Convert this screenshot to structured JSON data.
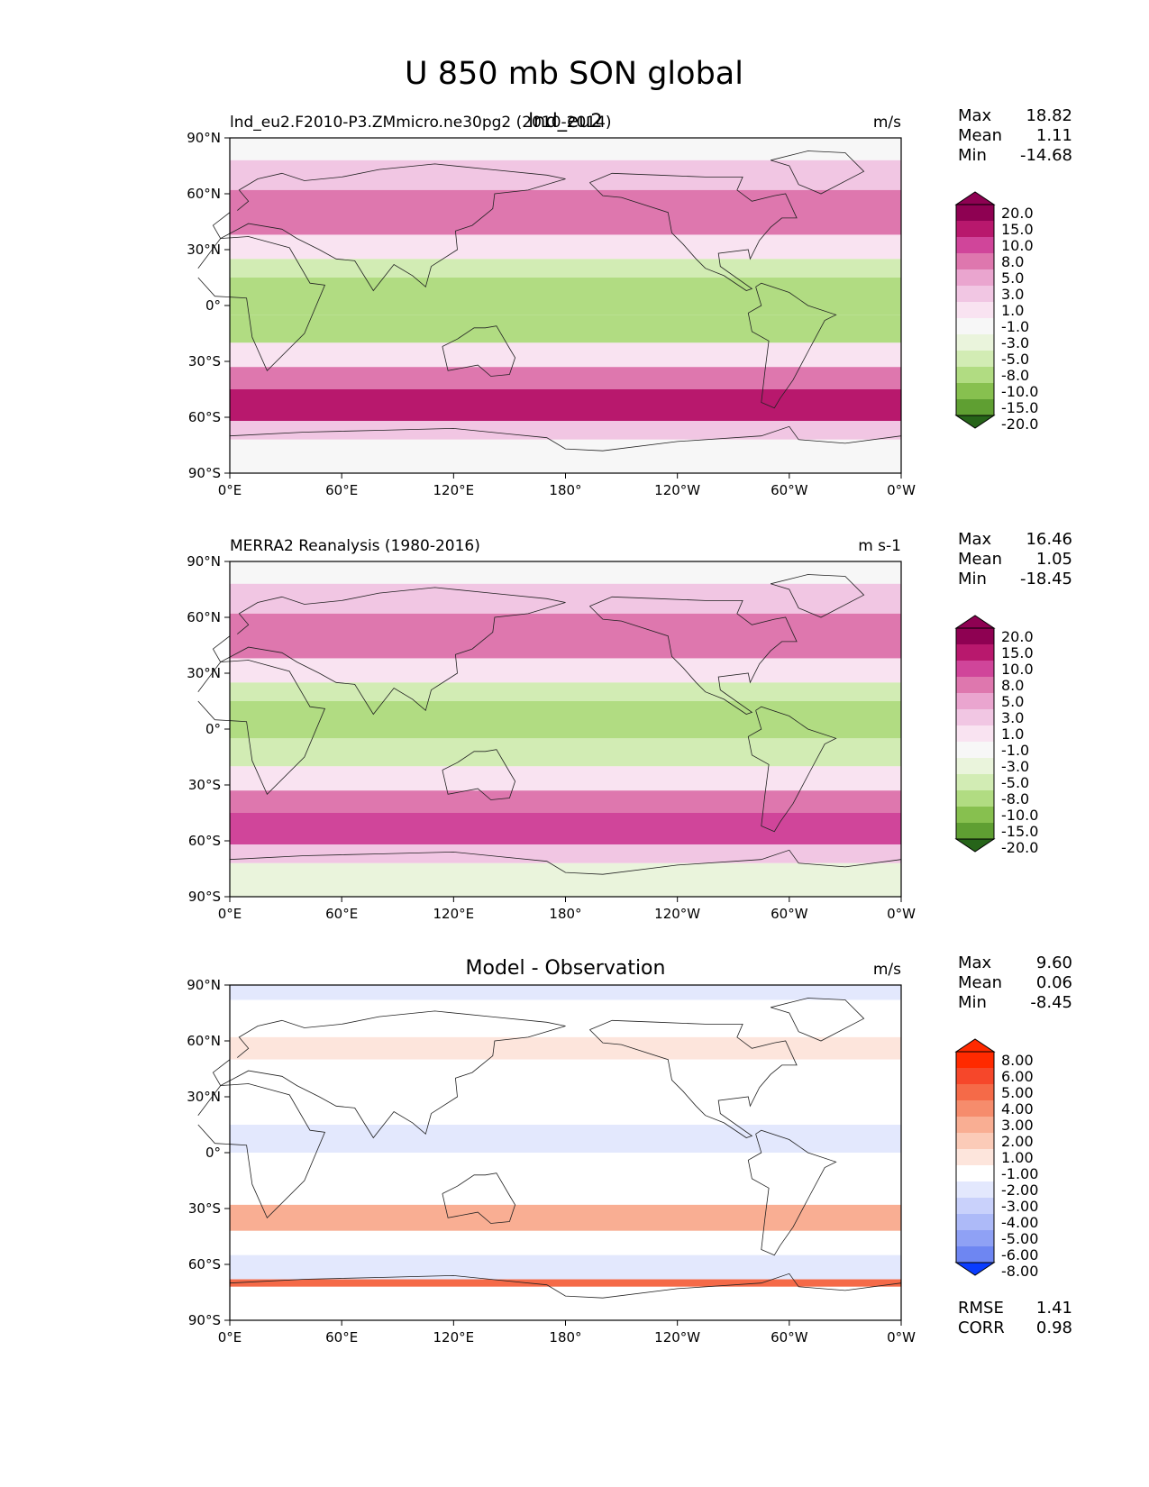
{
  "figure_title": "U 850 mb SON global",
  "chart_data": [
    {
      "type": "heatmap",
      "panel": "test",
      "overlay_label": "lnd_eu2",
      "title_left": "lnd_eu2.F2010-P3.ZMmicro.ne30pg2 (2010-2014)",
      "title_center": "",
      "units": "m/s",
      "stats": [
        {
          "label": "Max",
          "value": "18.82"
        },
        {
          "label": "Mean",
          "value": "1.11"
        },
        {
          "label": "Min",
          "value": "-14.68"
        }
      ],
      "colorbar": {
        "levels": [
          "20.0",
          "15.0",
          "10.0",
          "8.0",
          "5.0",
          "3.0",
          "1.0",
          "-1.0",
          "-3.0",
          "-5.0",
          "-8.0",
          "-10.0",
          "-15.0",
          "-20.0"
        ],
        "colors": [
          "#8e0152",
          "#b8186d",
          "#d0459a",
          "#de77ae",
          "#eaa5cf",
          "#f1c6e3",
          "#f9e3f1",
          "#f7f7f7",
          "#eaf4dc",
          "#d2ecb4",
          "#b1dc82",
          "#87c04f",
          "#5f9f32",
          "#3e7e1f",
          "#266419"
        ]
      },
      "xticks": [
        "0°E",
        "60°E",
        "120°E",
        "180°",
        "120°W",
        "60°W",
        "0°W"
      ],
      "yticks": [
        "90°N",
        "60°N",
        "30°N",
        "0°",
        "30°S",
        "60°S",
        "90°S"
      ],
      "field_bands": [
        {
          "lat": [
            90,
            78
          ],
          "value": 0.5
        },
        {
          "lat": [
            78,
            62
          ],
          "value": 3.5
        },
        {
          "lat": [
            62,
            38
          ],
          "value": 9
        },
        {
          "lat": [
            38,
            25
          ],
          "value": 2
        },
        {
          "lat": [
            25,
            15
          ],
          "value": -5
        },
        {
          "lat": [
            15,
            -5
          ],
          "value": -8
        },
        {
          "lat": [
            -5,
            -20
          ],
          "value": -6
        },
        {
          "lat": [
            -20,
            -33
          ],
          "value": 1
        },
        {
          "lat": [
            -33,
            -45
          ],
          "value": 9
        },
        {
          "lat": [
            -45,
            -62
          ],
          "value": 15
        },
        {
          "lat": [
            -62,
            -72
          ],
          "value": 3
        },
        {
          "lat": [
            -72,
            -90
          ],
          "value": 0.5
        }
      ]
    },
    {
      "type": "heatmap",
      "panel": "reference",
      "title_left": "MERRA2 Reanalysis (1980-2016)",
      "title_center": "",
      "units": "m s-1",
      "stats": [
        {
          "label": "Max",
          "value": "16.46"
        },
        {
          "label": "Mean",
          "value": "1.05"
        },
        {
          "label": "Min",
          "value": "-18.45"
        }
      ],
      "colorbar": {
        "levels": [
          "20.0",
          "15.0",
          "10.0",
          "8.0",
          "5.0",
          "3.0",
          "1.0",
          "-1.0",
          "-3.0",
          "-5.0",
          "-8.0",
          "-10.0",
          "-15.0",
          "-20.0"
        ],
        "colors": [
          "#8e0152",
          "#b8186d",
          "#d0459a",
          "#de77ae",
          "#eaa5cf",
          "#f1c6e3",
          "#f9e3f1",
          "#f7f7f7",
          "#eaf4dc",
          "#d2ecb4",
          "#b1dc82",
          "#87c04f",
          "#5f9f32",
          "#3e7e1f",
          "#266419"
        ]
      },
      "xticks": [
        "0°E",
        "60°E",
        "120°E",
        "180°",
        "120°W",
        "60°W",
        "0°W"
      ],
      "yticks": [
        "90°N",
        "60°N",
        "30°N",
        "0°",
        "30°S",
        "60°S",
        "90°S"
      ],
      "field_bands": [
        {
          "lat": [
            90,
            78
          ],
          "value": 0.5
        },
        {
          "lat": [
            78,
            62
          ],
          "value": 3.5
        },
        {
          "lat": [
            62,
            38
          ],
          "value": 8.5
        },
        {
          "lat": [
            38,
            25
          ],
          "value": 2
        },
        {
          "lat": [
            25,
            15
          ],
          "value": -4
        },
        {
          "lat": [
            15,
            -5
          ],
          "value": -7
        },
        {
          "lat": [
            -5,
            -20
          ],
          "value": -5
        },
        {
          "lat": [
            -20,
            -33
          ],
          "value": 2
        },
        {
          "lat": [
            -33,
            -45
          ],
          "value": 9
        },
        {
          "lat": [
            -45,
            -62
          ],
          "value": 14
        },
        {
          "lat": [
            -62,
            -72
          ],
          "value": 3
        },
        {
          "lat": [
            -72,
            -90
          ],
          "value": -2
        }
      ]
    },
    {
      "type": "heatmap",
      "panel": "difference",
      "title_left": "",
      "title_center": "Model - Observation",
      "units": "m/s",
      "stats": [
        {
          "label": "Max",
          "value": "9.60"
        },
        {
          "label": "Mean",
          "value": "0.06"
        },
        {
          "label": "Min",
          "value": "-8.45"
        }
      ],
      "extra_stats": [
        {
          "label": "RMSE",
          "value": "1.41"
        },
        {
          "label": "CORR",
          "value": "0.98"
        }
      ],
      "colorbar": {
        "levels": [
          "8.00",
          "6.00",
          "5.00",
          "4.00",
          "3.00",
          "2.00",
          "1.00",
          "-1.00",
          "-2.00",
          "-3.00",
          "-4.00",
          "-5.00",
          "-6.00",
          "-8.00"
        ],
        "colors": [
          "#ff2a00",
          "#f6472a",
          "#f56a48",
          "#f68c6c",
          "#f9ae93",
          "#fbcbb8",
          "#fde5dc",
          "#ffffff",
          "#e3e8fd",
          "#c9d1fb",
          "#adbaf8",
          "#8fa1f5",
          "#6e86f2",
          "#4a66f0",
          "#0a3cff"
        ]
      },
      "xticks": [
        "0°E",
        "60°E",
        "120°E",
        "180°",
        "120°W",
        "60°W",
        "0°W"
      ],
      "yticks": [
        "90°N",
        "60°N",
        "30°N",
        "0°",
        "30°S",
        "60°S",
        "90°S"
      ],
      "field_bands": [
        {
          "lat": [
            90,
            82
          ],
          "value": -1.5
        },
        {
          "lat": [
            82,
            62
          ],
          "value": 0
        },
        {
          "lat": [
            62,
            50
          ],
          "value": 1.5
        },
        {
          "lat": [
            50,
            15
          ],
          "value": 0
        },
        {
          "lat": [
            15,
            0
          ],
          "value": -1.5
        },
        {
          "lat": [
            0,
            -28
          ],
          "value": 0
        },
        {
          "lat": [
            -28,
            -42
          ],
          "value": 3
        },
        {
          "lat": [
            -42,
            -55
          ],
          "value": 0
        },
        {
          "lat": [
            -55,
            -68
          ],
          "value": -1.5
        },
        {
          "lat": [
            -68,
            -72
          ],
          "value": 5
        },
        {
          "lat": [
            -72,
            -90
          ],
          "value": 0
        }
      ]
    }
  ]
}
